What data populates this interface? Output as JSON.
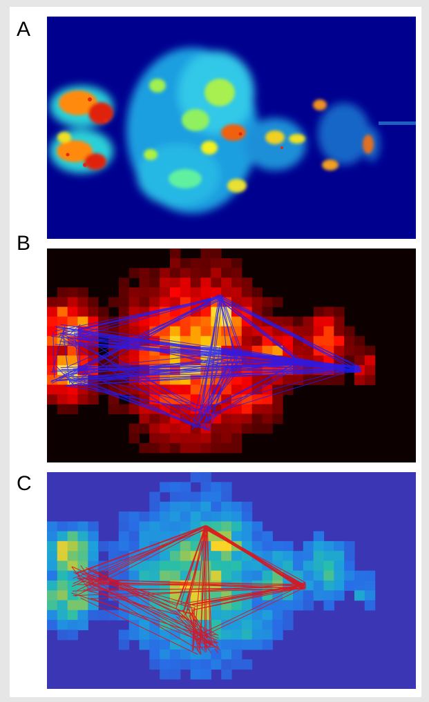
{
  "panels": [
    {
      "label": "A",
      "colormap": "jet",
      "background": "#00008b"
    },
    {
      "label": "B",
      "colormap": "hot",
      "background": "#0c0000",
      "overlay_color": "#1a1aff"
    },
    {
      "label": "C",
      "colormap": "parula",
      "background": "#3a3ab0",
      "overlay_color": "#e0101a"
    }
  ]
}
